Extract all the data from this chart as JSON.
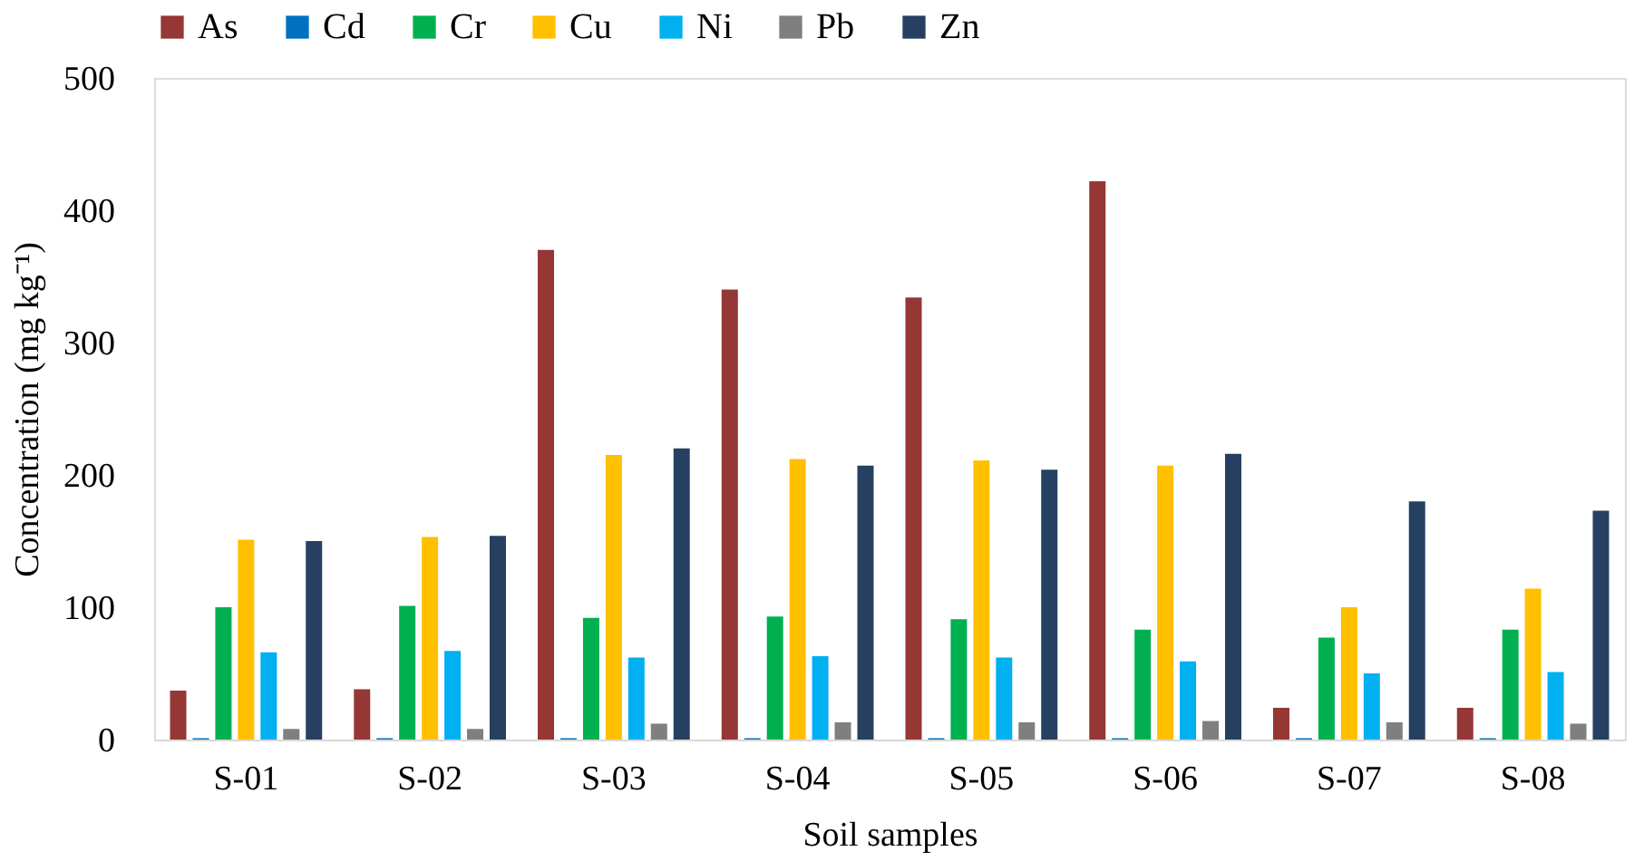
{
  "chart_data": {
    "type": "bar",
    "xlabel": "Soil samples",
    "ylabel": "Concentration (mg kg⁻¹)",
    "categories": [
      "S-01",
      "S-02",
      "S-03",
      "S-04",
      "S-05",
      "S-06",
      "S-07",
      "S-08"
    ],
    "series": [
      {
        "name": "As",
        "color": "#953735",
        "values": [
          37,
          38,
          370,
          340,
          334,
          422,
          24,
          24
        ]
      },
      {
        "name": "Cd",
        "color": "#0070c0",
        "values": [
          1,
          1,
          1,
          1,
          1,
          1,
          1,
          1
        ]
      },
      {
        "name": "Cr",
        "color": "#00b050",
        "values": [
          100,
          101,
          92,
          93,
          91,
          83,
          77,
          83
        ]
      },
      {
        "name": "Cu",
        "color": "#ffc000",
        "values": [
          151,
          153,
          215,
          212,
          211,
          207,
          100,
          114
        ]
      },
      {
        "name": "Ni",
        "color": "#00b0f0",
        "values": [
          66,
          67,
          62,
          63,
          62,
          59,
          50,
          51
        ]
      },
      {
        "name": "Pb",
        "color": "#7f7f7f",
        "values": [
          8,
          8,
          12,
          13,
          13,
          14,
          13,
          12
        ]
      },
      {
        "name": "Zn",
        "color": "#254061",
        "values": [
          150,
          154,
          220,
          207,
          204,
          216,
          180,
          173
        ]
      }
    ],
    "ylim": [
      0,
      500
    ],
    "yticks": [
      0,
      100,
      200,
      300,
      400,
      500
    ],
    "grid": false,
    "legend": "top"
  }
}
